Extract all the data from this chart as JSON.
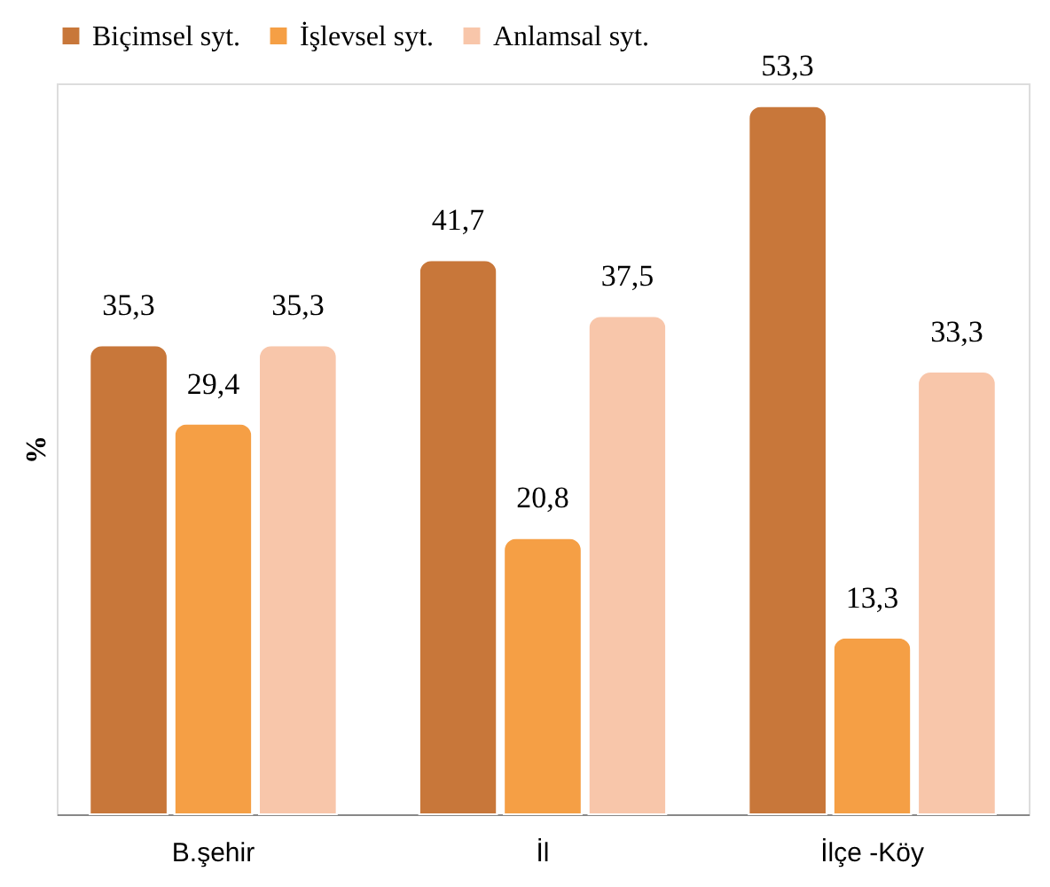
{
  "chart_data": {
    "type": "bar",
    "ylabel": "%",
    "categories": [
      "B.şehir",
      "İl",
      "İlçe -Köy"
    ],
    "series": [
      {
        "name": "Biçimsel syt.",
        "color": "#c8773a",
        "values": [
          35.3,
          41.7,
          53.3
        ],
        "value_labels": [
          "35,3",
          "41,7",
          "53,3"
        ]
      },
      {
        "name": "İşlevsel syt.",
        "color": "#f59f45",
        "values": [
          29.4,
          20.8,
          13.3
        ],
        "value_labels": [
          "29,4",
          "20,8",
          "13,3"
        ]
      },
      {
        "name": "Anlamsal syt.",
        "color": "#f8c6aa",
        "values": [
          35.3,
          37.5,
          33.3
        ],
        "value_labels": [
          "35,3",
          "37,5",
          "33,3"
        ]
      }
    ],
    "legend": "top",
    "grid": false,
    "tick_labels": "x"
  }
}
